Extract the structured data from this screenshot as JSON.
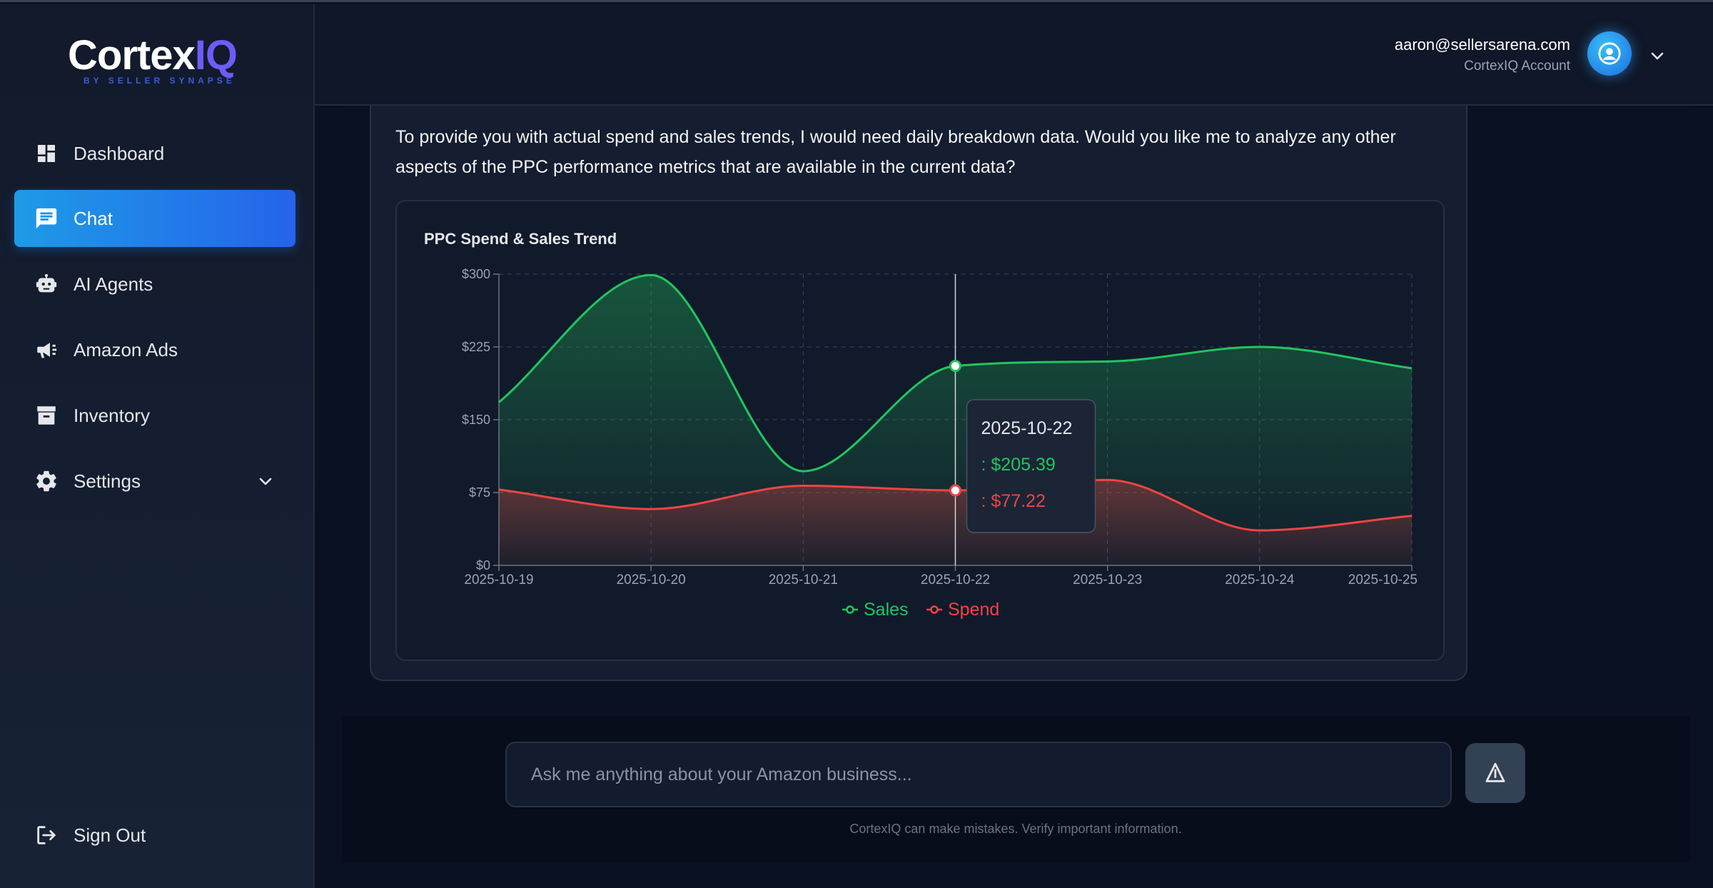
{
  "brand": {
    "name_main": "Cortex",
    "name_accent": "IQ",
    "tagline": "BY SELLER SYNAPSE"
  },
  "sidebar": {
    "items": [
      {
        "label": "Dashboard",
        "icon": "dashboard-icon"
      },
      {
        "label": "Chat",
        "icon": "chat-icon",
        "active": true
      },
      {
        "label": "AI Agents",
        "icon": "robot-icon"
      },
      {
        "label": "Amazon Ads",
        "icon": "megaphone-icon"
      },
      {
        "label": "Inventory",
        "icon": "archive-icon"
      },
      {
        "label": "Settings",
        "icon": "gear-icon",
        "expandable": true
      }
    ],
    "sign_out": "Sign Out"
  },
  "header": {
    "email": "aaron@sellersarena.com",
    "account": "CortexIQ Account"
  },
  "message": {
    "text": "To provide you with actual spend and sales trends, I would need daily breakdown data. Would you like me to analyze any other aspects of the PPC performance metrics that are available in the current data?"
  },
  "chart_data": {
    "type": "area",
    "title": "PPC Spend & Sales Trend",
    "x": [
      "2025-10-19",
      "2025-10-20",
      "2025-10-21",
      "2025-10-22",
      "2025-10-23",
      "2025-10-24",
      "2025-10-25"
    ],
    "y_ticks": [
      "$0",
      "$75",
      "$150",
      "$225",
      "$300"
    ],
    "ylim": [
      0,
      300
    ],
    "grid": true,
    "legend": "bottom-center",
    "series": [
      {
        "name": "Sales",
        "color": "#22c55e",
        "values": [
          168,
          299,
          97,
          205.39,
          210,
          225,
          203
        ]
      },
      {
        "name": "Spend",
        "color": "#ef4444",
        "values": [
          78,
          58,
          82,
          77.22,
          88,
          36,
          51
        ]
      }
    ],
    "tooltip": {
      "date": "2025-10-22",
      "sales": ": $205.39",
      "spend": ": $77.22"
    }
  },
  "input": {
    "placeholder": "Ask me anything about your Amazon business..."
  },
  "disclaimer": "CortexIQ can make mistakes. Verify important information."
}
